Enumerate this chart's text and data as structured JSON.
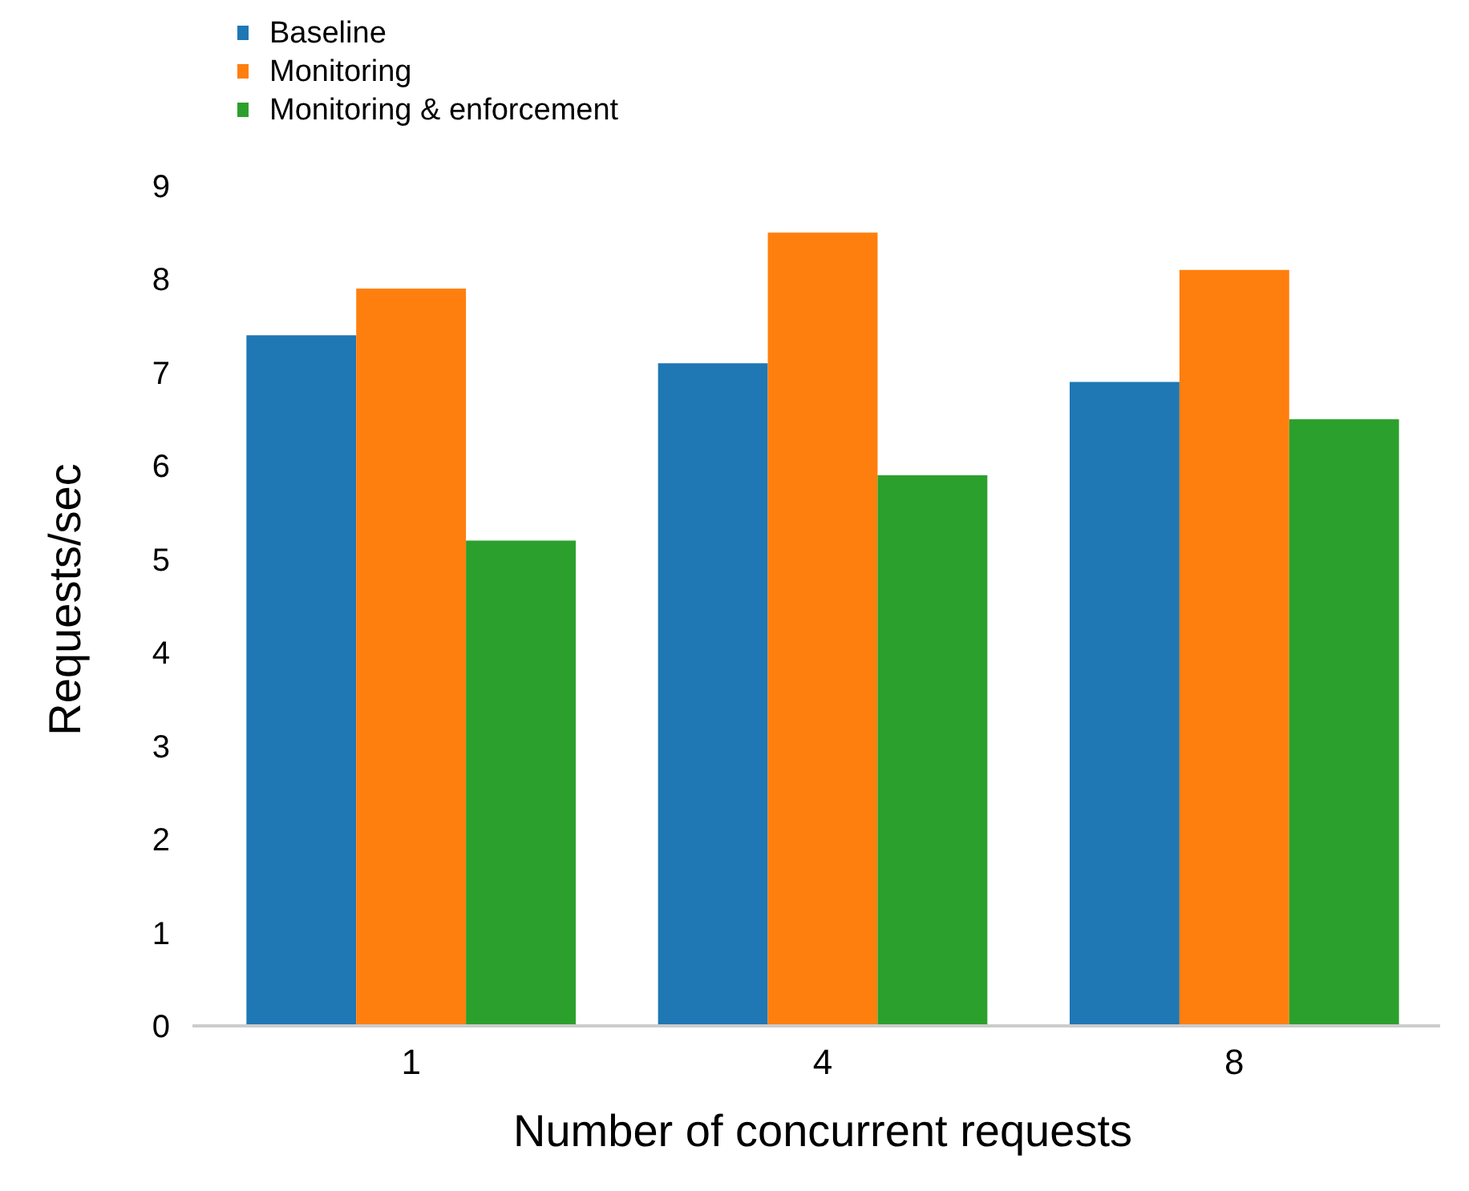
{
  "chart_data": {
    "type": "bar",
    "xlabel": "Number of concurrent requests",
    "ylabel": "Requests/sec",
    "categories": [
      "1",
      "4",
      "8"
    ],
    "series": [
      {
        "name": "Baseline",
        "color": "#1f77b4",
        "values": [
          7.4,
          7.1,
          6.9
        ]
      },
      {
        "name": "Monitoring",
        "color": "#ff7f0e",
        "values": [
          7.9,
          8.5,
          8.1
        ]
      },
      {
        "name": "Monitoring & enforcement",
        "color": "#2ca02c",
        "values": [
          5.2,
          5.9,
          6.5
        ]
      }
    ],
    "ylim": [
      0,
      9
    ],
    "yticks": [
      0,
      1,
      2,
      3,
      4,
      5,
      6,
      7,
      8,
      9
    ],
    "legend": "top left",
    "grid": false
  }
}
